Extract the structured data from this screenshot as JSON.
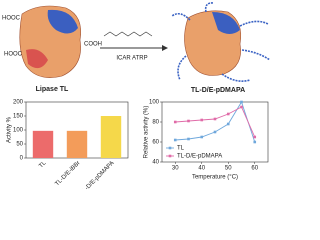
{
  "diagram": {
    "left_label": "Lipase TL",
    "hooc_top": "HOOC",
    "hooc_bottom": "HOOC",
    "cooh_right": "COOH",
    "arrow_label": "ICAR ATRP",
    "right_label": "TL-D/E-pDMAPA"
  },
  "chart_data": [
    {
      "type": "bar",
      "ylabel": "Activity %",
      "categories": [
        "TL",
        "TL-D/E-iBBr",
        "TL-D/E-pDMAPA"
      ],
      "values": [
        97,
        97,
        150
      ],
      "colors": [
        "#ec6b6b",
        "#f39c5a",
        "#f5d84a"
      ],
      "ylim": [
        0,
        200
      ],
      "yticks": [
        0,
        50,
        100,
        150,
        200
      ]
    },
    {
      "type": "line",
      "xlabel": "Temperature (°C)",
      "ylabel": "Relative activity (%)",
      "x": [
        30,
        35,
        40,
        45,
        50,
        55,
        60
      ],
      "xlim": [
        25,
        65
      ],
      "xticks": [
        30,
        40,
        50,
        60
      ],
      "ylim": [
        40,
        100
      ],
      "yticks": [
        40,
        60,
        80,
        100
      ],
      "legend": "lower-left",
      "series": [
        {
          "name": "TL",
          "color": "#6fa8dc",
          "values": [
            62,
            63,
            65,
            70,
            78,
            100,
            60
          ]
        },
        {
          "name": "TL-D/E-pDMAPA",
          "color": "#e06ba8",
          "values": [
            80,
            81,
            82,
            83,
            88,
            95,
            65
          ]
        }
      ]
    }
  ]
}
